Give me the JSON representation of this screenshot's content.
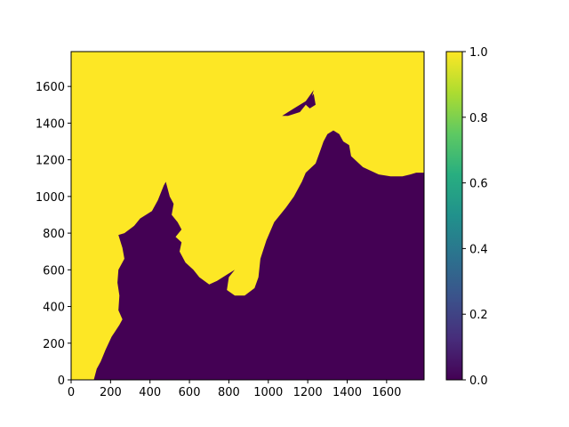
{
  "chart_data": {
    "type": "heatmap",
    "title": "",
    "xlabel": "",
    "ylabel": "",
    "xlim": [
      0,
      1790
    ],
    "ylim": [
      0,
      1790
    ],
    "x_ticks": [
      0,
      200,
      400,
      600,
      800,
      1000,
      1200,
      1400,
      1600
    ],
    "y_ticks": [
      0,
      200,
      400,
      600,
      800,
      1000,
      1200,
      1400,
      1600
    ],
    "values": [
      0,
      1
    ],
    "value_meaning": "binary mask: 1 = upper-left region (yellow), 0 = lower-right region (purple)",
    "colormap": "viridis",
    "colors": {
      "low": "#440154",
      "high": "#fde725"
    },
    "colorbar": {
      "range": [
        0.0,
        1.0
      ],
      "ticks": [
        "0.0",
        "0.2",
        "0.4",
        "0.6",
        "0.8",
        "1.0"
      ]
    },
    "grid": false,
    "boundary": [
      [
        115,
        0
      ],
      [
        130,
        60
      ],
      [
        150,
        100
      ],
      [
        175,
        165
      ],
      [
        205,
        235
      ],
      [
        245,
        300
      ],
      [
        260,
        330
      ],
      [
        240,
        380
      ],
      [
        245,
        460
      ],
      [
        235,
        530
      ],
      [
        240,
        600
      ],
      [
        270,
        660
      ],
      [
        260,
        720
      ],
      [
        240,
        790
      ],
      [
        270,
        800
      ],
      [
        320,
        840
      ],
      [
        350,
        880
      ],
      [
        410,
        920
      ],
      [
        440,
        980
      ],
      [
        470,
        1060
      ],
      [
        480,
        1080
      ],
      [
        500,
        1000
      ],
      [
        520,
        960
      ],
      [
        510,
        900
      ],
      [
        540,
        860
      ],
      [
        560,
        820
      ],
      [
        530,
        780
      ],
      [
        560,
        750
      ],
      [
        550,
        700
      ],
      [
        580,
        640
      ],
      [
        620,
        600
      ],
      [
        650,
        560
      ],
      [
        700,
        520
      ],
      [
        740,
        540
      ],
      [
        800,
        580
      ],
      [
        830,
        600
      ],
      [
        800,
        560
      ],
      [
        790,
        490
      ],
      [
        830,
        460
      ],
      [
        880,
        460
      ],
      [
        930,
        500
      ],
      [
        950,
        560
      ],
      [
        960,
        660
      ],
      [
        990,
        760
      ],
      [
        1030,
        860
      ],
      [
        1090,
        940
      ],
      [
        1130,
        1000
      ],
      [
        1170,
        1080
      ],
      [
        1190,
        1130
      ],
      [
        1240,
        1180
      ],
      [
        1260,
        1240
      ],
      [
        1280,
        1300
      ],
      [
        1300,
        1340
      ],
      [
        1330,
        1360
      ],
      [
        1360,
        1340
      ],
      [
        1380,
        1300
      ],
      [
        1410,
        1280
      ],
      [
        1420,
        1220
      ],
      [
        1450,
        1190
      ],
      [
        1480,
        1160
      ],
      [
        1520,
        1140
      ],
      [
        1560,
        1120
      ],
      [
        1620,
        1110
      ],
      [
        1680,
        1110
      ],
      [
        1720,
        1120
      ],
      [
        1750,
        1130
      ],
      [
        1790,
        1130
      ]
    ],
    "islands": [
      [
        [
          1070,
          1440
        ],
        [
          1130,
          1480
        ],
        [
          1190,
          1520
        ],
        [
          1230,
          1580
        ],
        [
          1220,
          1540
        ],
        [
          1160,
          1460
        ],
        [
          1100,
          1440
        ]
      ],
      [
        [
          1190,
          1500
        ],
        [
          1230,
          1560
        ],
        [
          1240,
          1500
        ],
        [
          1210,
          1480
        ]
      ]
    ]
  }
}
